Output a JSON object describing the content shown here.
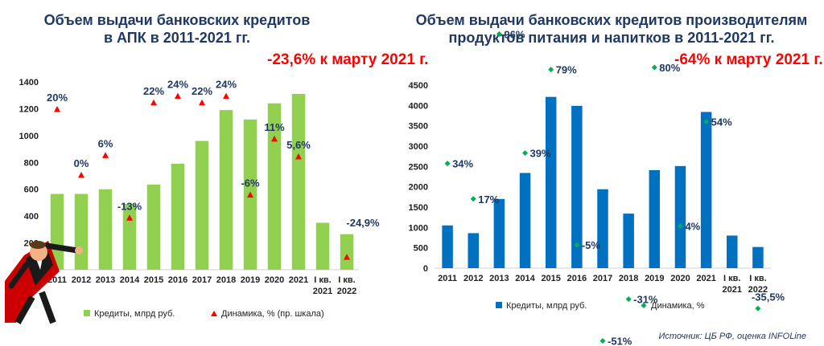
{
  "charts": {
    "left": {
      "title_line1": "Объем выдачи банковских кредитов",
      "title_line2": "в АПК в 2011-2021 гг.",
      "note": "-23,6% к марту 2021 г."
    },
    "right": {
      "title_line1": "Объем выдачи банковских кредитов производителям",
      "title_line2": "продуктов питания и напитков в 2011-2021 гг.",
      "note": "-64% к марту 2021 г."
    }
  },
  "source": "Источник: ЦБ РФ, оценка INFOLine",
  "colors": {
    "left_bar": "#92d050",
    "left_marker": "#ff0000",
    "right_bar": "#0070c0",
    "right_marker": "#00b050",
    "title": "#1f3864"
  },
  "chart_data": [
    {
      "type": "bar",
      "categories": [
        "2011",
        "2012",
        "2013",
        "2014",
        "2015",
        "2016",
        "2017",
        "2018",
        "2019",
        "2020",
        "2021",
        "I кв. 2021",
        "I кв. 2022"
      ],
      "ylim": [
        0,
        1400
      ],
      "yticks": [
        0,
        200,
        400,
        600,
        800,
        1000,
        1200,
        1400
      ],
      "grid": false,
      "legend_position": "bottom",
      "series": [
        {
          "name": "Кредиты, млрд руб.",
          "kind": "bar",
          "values": [
            565,
            565,
            600,
            490,
            635,
            790,
            960,
            1190,
            1120,
            1240,
            1310,
            350,
            265
          ]
        },
        {
          "name": "Динамика, % (пр. шкала)",
          "kind": "marker",
          "axis": "secondary",
          "values": [
            20,
            0,
            6,
            -13,
            22,
            24,
            22,
            24,
            -6,
            11,
            5.6,
            null,
            -24.9
          ],
          "labels": [
            "20%",
            "0%",
            "6%",
            "-13%",
            "22%",
            "24%",
            "22%",
            "24%",
            "-6%",
            "11%",
            "5,6%",
            "",
            "-24,9%"
          ]
        }
      ]
    },
    {
      "type": "bar",
      "categories": [
        "2011",
        "2012",
        "2013",
        "2014",
        "2015",
        "2016",
        "2017",
        "2018",
        "2019",
        "2020",
        "2021",
        "I кв. 2021",
        "I кв. 2022"
      ],
      "ylim": [
        0,
        4500
      ],
      "yticks": [
        0,
        500,
        1000,
        1500,
        2000,
        2500,
        3000,
        3500,
        4000,
        4500
      ],
      "grid": false,
      "legend_position": "bottom",
      "series": [
        {
          "name": "Кредиты, млрд руб.",
          "kind": "bar",
          "values": [
            1050,
            860,
            1700,
            2340,
            4210,
            3990,
            1940,
            1340,
            2410,
            2510,
            3840,
            800,
            520
          ]
        },
        {
          "name": "Динамика, %",
          "kind": "marker",
          "axis": "secondary",
          "values": [
            34,
            17,
            96,
            39,
            79,
            -5,
            -51,
            -31,
            80,
            4,
            54,
            null,
            -35.5
          ],
          "labels": [
            "34%",
            "17%",
            "96%",
            "39%",
            "79%",
            "-5%",
            "-51%",
            "-31%",
            "80%",
            "4%",
            "54%",
            "",
            "-35,5%"
          ]
        }
      ]
    }
  ]
}
